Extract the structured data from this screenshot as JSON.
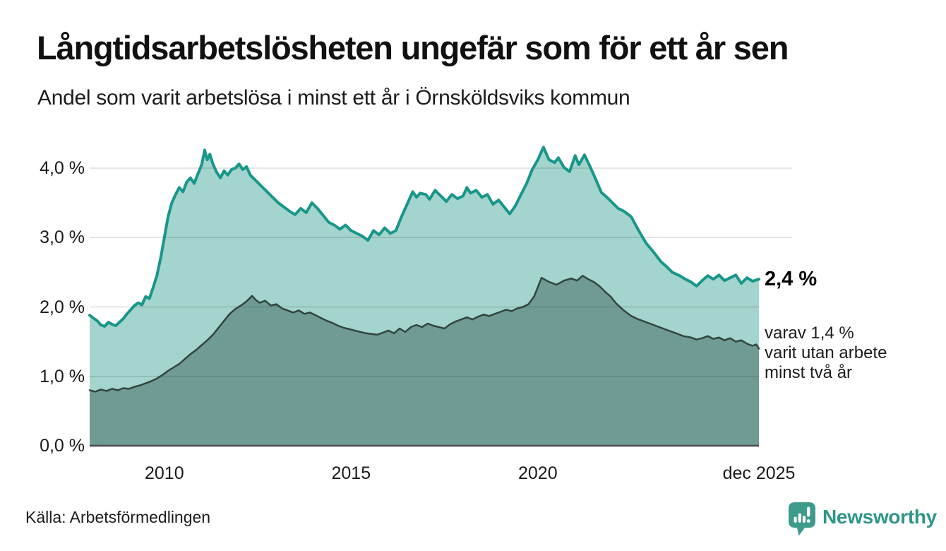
{
  "chart_data": {
    "type": "area",
    "title": "Långtidsarbetslösheten ungefär som för ett år sen",
    "subtitle": "Andel som varit arbetslösa i minst ett år i Örnsköldsviks kommun",
    "xlabel": "",
    "ylabel": "",
    "unit": "%",
    "xlim": [
      2008,
      2025.92
    ],
    "ylim": [
      0,
      4.4
    ],
    "grid": "horizontal",
    "legend": "none",
    "x_ticks": [
      {
        "label": "2010",
        "value": 2010
      },
      {
        "label": "2015",
        "value": 2015
      },
      {
        "label": "2020",
        "value": 2020
      },
      {
        "label": "dec 2025",
        "value": 2025.92
      }
    ],
    "y_ticks": [
      {
        "label": "0,0 %",
        "value": 0
      },
      {
        "label": "1,0 %",
        "value": 1
      },
      {
        "label": "2,0 %",
        "value": 2
      },
      {
        "label": "3,0 %",
        "value": 3
      },
      {
        "label": "4,0 %",
        "value": 4
      }
    ],
    "series": [
      {
        "name": "Arbetslösa minst ett år",
        "line_color": "#18968a",
        "fill_color": "#a3d4cd",
        "line_width": 4,
        "end_value": 2.4,
        "points": [
          [
            2008.0,
            1.88
          ],
          [
            2008.1,
            1.84
          ],
          [
            2008.2,
            1.8
          ],
          [
            2008.3,
            1.74
          ],
          [
            2008.4,
            1.72
          ],
          [
            2008.5,
            1.78
          ],
          [
            2008.6,
            1.75
          ],
          [
            2008.7,
            1.73
          ],
          [
            2008.8,
            1.78
          ],
          [
            2008.9,
            1.83
          ],
          [
            2009.0,
            1.9
          ],
          [
            2009.1,
            1.96
          ],
          [
            2009.2,
            2.02
          ],
          [
            2009.3,
            2.06
          ],
          [
            2009.4,
            2.03
          ],
          [
            2009.5,
            2.15
          ],
          [
            2009.6,
            2.12
          ],
          [
            2009.7,
            2.28
          ],
          [
            2009.8,
            2.45
          ],
          [
            2009.9,
            2.7
          ],
          [
            2010.0,
            3.0
          ],
          [
            2010.1,
            3.3
          ],
          [
            2010.2,
            3.5
          ],
          [
            2010.3,
            3.62
          ],
          [
            2010.4,
            3.72
          ],
          [
            2010.5,
            3.66
          ],
          [
            2010.6,
            3.8
          ],
          [
            2010.7,
            3.86
          ],
          [
            2010.8,
            3.78
          ],
          [
            2010.9,
            3.92
          ],
          [
            2011.0,
            4.05
          ],
          [
            2011.08,
            4.26
          ],
          [
            2011.15,
            4.12
          ],
          [
            2011.22,
            4.2
          ],
          [
            2011.3,
            4.06
          ],
          [
            2011.4,
            3.94
          ],
          [
            2011.5,
            3.86
          ],
          [
            2011.6,
            3.96
          ],
          [
            2011.7,
            3.9
          ],
          [
            2011.8,
            3.98
          ],
          [
            2011.9,
            4.0
          ],
          [
            2012.0,
            4.06
          ],
          [
            2012.1,
            3.98
          ],
          [
            2012.2,
            4.02
          ],
          [
            2012.3,
            3.9
          ],
          [
            2012.45,
            3.82
          ],
          [
            2012.6,
            3.74
          ],
          [
            2012.75,
            3.66
          ],
          [
            2012.9,
            3.58
          ],
          [
            2013.05,
            3.5
          ],
          [
            2013.2,
            3.44
          ],
          [
            2013.35,
            3.38
          ],
          [
            2013.5,
            3.33
          ],
          [
            2013.65,
            3.42
          ],
          [
            2013.8,
            3.36
          ],
          [
            2013.95,
            3.5
          ],
          [
            2014.1,
            3.42
          ],
          [
            2014.25,
            3.32
          ],
          [
            2014.4,
            3.22
          ],
          [
            2014.55,
            3.18
          ],
          [
            2014.7,
            3.12
          ],
          [
            2014.85,
            3.18
          ],
          [
            2015.0,
            3.1
          ],
          [
            2015.15,
            3.06
          ],
          [
            2015.3,
            3.02
          ],
          [
            2015.45,
            2.96
          ],
          [
            2015.6,
            3.1
          ],
          [
            2015.75,
            3.04
          ],
          [
            2015.9,
            3.14
          ],
          [
            2016.05,
            3.06
          ],
          [
            2016.2,
            3.1
          ],
          [
            2016.35,
            3.3
          ],
          [
            2016.5,
            3.48
          ],
          [
            2016.65,
            3.66
          ],
          [
            2016.75,
            3.58
          ],
          [
            2016.85,
            3.64
          ],
          [
            2017.0,
            3.62
          ],
          [
            2017.1,
            3.55
          ],
          [
            2017.25,
            3.68
          ],
          [
            2017.4,
            3.6
          ],
          [
            2017.55,
            3.52
          ],
          [
            2017.7,
            3.62
          ],
          [
            2017.85,
            3.56
          ],
          [
            2018.0,
            3.6
          ],
          [
            2018.1,
            3.72
          ],
          [
            2018.2,
            3.64
          ],
          [
            2018.35,
            3.68
          ],
          [
            2018.5,
            3.58
          ],
          [
            2018.65,
            3.62
          ],
          [
            2018.8,
            3.48
          ],
          [
            2018.95,
            3.54
          ],
          [
            2019.1,
            3.44
          ],
          [
            2019.25,
            3.34
          ],
          [
            2019.4,
            3.46
          ],
          [
            2019.55,
            3.62
          ],
          [
            2019.7,
            3.78
          ],
          [
            2019.85,
            3.98
          ],
          [
            2020.0,
            4.12
          ],
          [
            2020.15,
            4.3
          ],
          [
            2020.3,
            4.12
          ],
          [
            2020.45,
            4.08
          ],
          [
            2020.55,
            4.15
          ],
          [
            2020.7,
            4.01
          ],
          [
            2020.85,
            3.95
          ],
          [
            2021.0,
            4.18
          ],
          [
            2021.1,
            4.05
          ],
          [
            2021.25,
            4.19
          ],
          [
            2021.4,
            4.02
          ],
          [
            2021.55,
            3.84
          ],
          [
            2021.7,
            3.65
          ],
          [
            2021.85,
            3.58
          ],
          [
            2022.0,
            3.5
          ],
          [
            2022.15,
            3.42
          ],
          [
            2022.3,
            3.38
          ],
          [
            2022.5,
            3.3
          ],
          [
            2022.7,
            3.1
          ],
          [
            2022.9,
            2.92
          ],
          [
            2023.1,
            2.79
          ],
          [
            2023.3,
            2.65
          ],
          [
            2023.45,
            2.58
          ],
          [
            2023.6,
            2.5
          ],
          [
            2023.8,
            2.45
          ],
          [
            2023.95,
            2.4
          ],
          [
            2024.1,
            2.36
          ],
          [
            2024.25,
            2.3
          ],
          [
            2024.4,
            2.38
          ],
          [
            2024.55,
            2.45
          ],
          [
            2024.7,
            2.4
          ],
          [
            2024.85,
            2.46
          ],
          [
            2025.0,
            2.38
          ],
          [
            2025.15,
            2.42
          ],
          [
            2025.3,
            2.46
          ],
          [
            2025.45,
            2.34
          ],
          [
            2025.6,
            2.42
          ],
          [
            2025.75,
            2.37
          ],
          [
            2025.92,
            2.4
          ]
        ]
      },
      {
        "name": "Utan arbete minst två år",
        "line_color": "#32453f",
        "fill_color": "#6f9b94",
        "line_width": 2.5,
        "end_value": 1.4,
        "points": [
          [
            2008.0,
            0.8
          ],
          [
            2008.15,
            0.78
          ],
          [
            2008.3,
            0.81
          ],
          [
            2008.45,
            0.79
          ],
          [
            2008.6,
            0.82
          ],
          [
            2008.75,
            0.8
          ],
          [
            2008.9,
            0.83
          ],
          [
            2009.05,
            0.82
          ],
          [
            2009.2,
            0.85
          ],
          [
            2009.35,
            0.87
          ],
          [
            2009.5,
            0.9
          ],
          [
            2009.65,
            0.93
          ],
          [
            2009.8,
            0.97
          ],
          [
            2009.95,
            1.02
          ],
          [
            2010.1,
            1.08
          ],
          [
            2010.25,
            1.13
          ],
          [
            2010.4,
            1.18
          ],
          [
            2010.55,
            1.25
          ],
          [
            2010.7,
            1.32
          ],
          [
            2010.85,
            1.38
          ],
          [
            2011.0,
            1.45
          ],
          [
            2011.15,
            1.52
          ],
          [
            2011.3,
            1.6
          ],
          [
            2011.45,
            1.7
          ],
          [
            2011.6,
            1.8
          ],
          [
            2011.75,
            1.9
          ],
          [
            2011.9,
            1.97
          ],
          [
            2012.05,
            2.02
          ],
          [
            2012.2,
            2.08
          ],
          [
            2012.35,
            2.16
          ],
          [
            2012.45,
            2.1
          ],
          [
            2012.55,
            2.06
          ],
          [
            2012.7,
            2.09
          ],
          [
            2012.85,
            2.02
          ],
          [
            2013.0,
            2.04
          ],
          [
            2013.15,
            1.98
          ],
          [
            2013.3,
            1.95
          ],
          [
            2013.45,
            1.92
          ],
          [
            2013.6,
            1.95
          ],
          [
            2013.75,
            1.9
          ],
          [
            2013.9,
            1.92
          ],
          [
            2014.05,
            1.88
          ],
          [
            2014.2,
            1.84
          ],
          [
            2014.35,
            1.8
          ],
          [
            2014.5,
            1.77
          ],
          [
            2014.65,
            1.73
          ],
          [
            2014.8,
            1.7
          ],
          [
            2014.95,
            1.68
          ],
          [
            2015.1,
            1.66
          ],
          [
            2015.25,
            1.64
          ],
          [
            2015.4,
            1.62
          ],
          [
            2015.55,
            1.61
          ],
          [
            2015.7,
            1.6
          ],
          [
            2015.85,
            1.63
          ],
          [
            2016.0,
            1.66
          ],
          [
            2016.15,
            1.62
          ],
          [
            2016.3,
            1.69
          ],
          [
            2016.45,
            1.64
          ],
          [
            2016.6,
            1.71
          ],
          [
            2016.75,
            1.74
          ],
          [
            2016.9,
            1.71
          ],
          [
            2017.05,
            1.76
          ],
          [
            2017.2,
            1.73
          ],
          [
            2017.35,
            1.71
          ],
          [
            2017.5,
            1.69
          ],
          [
            2017.65,
            1.75
          ],
          [
            2017.8,
            1.79
          ],
          [
            2017.95,
            1.82
          ],
          [
            2018.1,
            1.85
          ],
          [
            2018.25,
            1.82
          ],
          [
            2018.4,
            1.86
          ],
          [
            2018.55,
            1.89
          ],
          [
            2018.7,
            1.87
          ],
          [
            2018.85,
            1.9
          ],
          [
            2019.0,
            1.93
          ],
          [
            2019.15,
            1.96
          ],
          [
            2019.3,
            1.94
          ],
          [
            2019.45,
            1.98
          ],
          [
            2019.6,
            2.0
          ],
          [
            2019.75,
            2.04
          ],
          [
            2019.9,
            2.15
          ],
          [
            2020.1,
            2.42
          ],
          [
            2020.3,
            2.36
          ],
          [
            2020.5,
            2.32
          ],
          [
            2020.7,
            2.38
          ],
          [
            2020.9,
            2.41
          ],
          [
            2021.05,
            2.38
          ],
          [
            2021.2,
            2.45
          ],
          [
            2021.35,
            2.4
          ],
          [
            2021.5,
            2.36
          ],
          [
            2021.65,
            2.3
          ],
          [
            2021.8,
            2.22
          ],
          [
            2021.95,
            2.15
          ],
          [
            2022.1,
            2.05
          ],
          [
            2022.3,
            1.95
          ],
          [
            2022.5,
            1.87
          ],
          [
            2022.7,
            1.82
          ],
          [
            2022.9,
            1.78
          ],
          [
            2023.1,
            1.74
          ],
          [
            2023.3,
            1.7
          ],
          [
            2023.5,
            1.66
          ],
          [
            2023.7,
            1.62
          ],
          [
            2023.9,
            1.58
          ],
          [
            2024.1,
            1.56
          ],
          [
            2024.25,
            1.53
          ],
          [
            2024.4,
            1.55
          ],
          [
            2024.55,
            1.58
          ],
          [
            2024.7,
            1.54
          ],
          [
            2024.85,
            1.56
          ],
          [
            2025.0,
            1.52
          ],
          [
            2025.15,
            1.55
          ],
          [
            2025.3,
            1.5
          ],
          [
            2025.45,
            1.52
          ],
          [
            2025.6,
            1.47
          ],
          [
            2025.75,
            1.44
          ],
          [
            2025.85,
            1.46
          ],
          [
            2025.92,
            1.4
          ]
        ]
      }
    ],
    "annotations": {
      "end_value_label": "2,4 %",
      "sub_lines": [
        "varav 1,4 %",
        "varit utan arbete",
        "minst två år"
      ]
    }
  },
  "footer": {
    "source": "Källa: Arbetsförmedlingen",
    "brand_name": "Newsworthy",
    "brand_icon_color": "#3d9b8b",
    "brand_text_color": "#2e9587"
  },
  "colors": {
    "grid": "rgba(0,0,0,0.13)",
    "axis": "#4a4a4a",
    "background": "#ffffff"
  }
}
